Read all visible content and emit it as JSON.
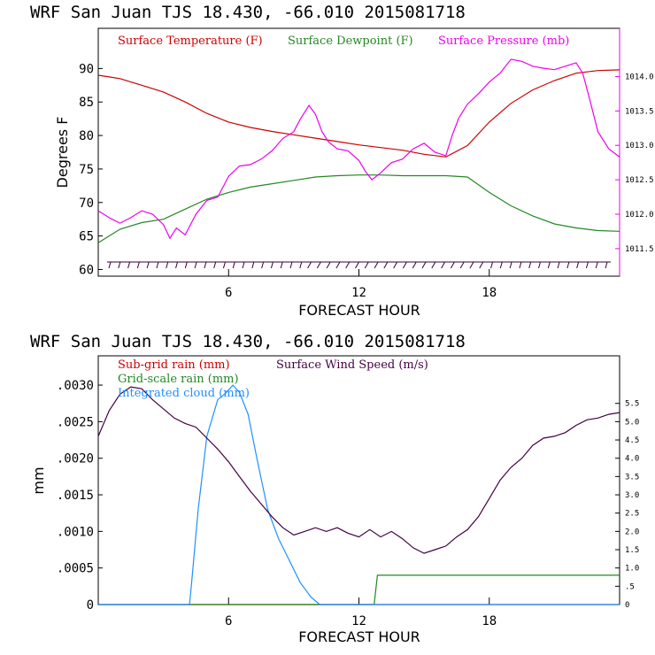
{
  "chart_data": [
    {
      "type": "line",
      "title": "WRF   San Juan TJS  18.430, -66.010  2015081718",
      "xlabel": "FORECAST HOUR",
      "ylabel": "Degrees F",
      "xlim": [
        0,
        24
      ],
      "ylim": [
        59,
        96
      ],
      "y2lim": [
        1011.1,
        1014.7
      ],
      "x_ticks": [
        6,
        12,
        18
      ],
      "y_ticks": [
        60,
        65,
        70,
        75,
        80,
        85,
        90
      ],
      "y2_ticks": [
        "1011.5",
        "1012.0",
        "1012.5",
        "1013.0",
        "1013.5",
        "1014.0"
      ],
      "y2_tick_values": [
        1011.5,
        1012.0,
        1012.5,
        1013.0,
        1013.5,
        1014.0
      ],
      "series": [
        {
          "name": "Surface Temperature (F)",
          "color": "#cc0000",
          "axis": "left",
          "x": [
            0,
            1,
            2,
            3,
            4,
            5,
            6,
            7,
            8,
            9,
            10,
            11,
            12,
            13,
            14,
            15,
            16,
            17,
            18,
            19,
            20,
            21,
            22,
            23,
            24
          ],
          "y": [
            89,
            88.5,
            87.5,
            86.5,
            85,
            83.3,
            82,
            81.2,
            80.6,
            80.1,
            79.6,
            79.1,
            78.6,
            78.2,
            77.8,
            77.2,
            76.8,
            78.5,
            82,
            84.8,
            86.8,
            88.2,
            89.3,
            89.7,
            89.8
          ]
        },
        {
          "name": "Surface Dewpoint (F)",
          "color": "#228822",
          "axis": "left",
          "x": [
            0,
            1,
            2,
            3,
            4,
            5,
            6,
            7,
            8,
            9,
            10,
            11,
            12,
            13,
            14,
            15,
            16,
            17,
            18,
            19,
            20,
            21,
            22,
            23,
            24
          ],
          "y": [
            64,
            66,
            67,
            67.5,
            69,
            70.5,
            71.5,
            72.3,
            72.8,
            73.3,
            73.8,
            74,
            74.1,
            74.1,
            74,
            74,
            74,
            73.8,
            71.5,
            69.5,
            68,
            66.8,
            66.2,
            65.8,
            65.7
          ]
        },
        {
          "name": "Surface Pressure (mb)",
          "color": "#ee00ee",
          "axis": "right",
          "x": [
            0,
            0.5,
            1,
            1.5,
            2,
            2.5,
            3,
            3.3,
            3.6,
            4,
            4.5,
            5,
            5.5,
            6,
            6.5,
            7,
            7.5,
            8,
            8.5,
            9,
            9.3,
            9.7,
            10,
            10.3,
            10.6,
            11,
            11.5,
            12,
            12.3,
            12.6,
            13,
            13.5,
            14,
            14.5,
            15,
            15.5,
            16,
            16.3,
            16.6,
            17,
            17.5,
            18,
            18.5,
            19,
            19.5,
            20,
            20.5,
            21,
            21.5,
            22,
            22.3,
            22.6,
            23,
            23.5,
            24
          ],
          "y": [
            1012.05,
            1011.95,
            1011.87,
            1011.95,
            1012.05,
            1012.0,
            1011.85,
            1011.65,
            1011.8,
            1011.7,
            1012.0,
            1012.2,
            1012.25,
            1012.55,
            1012.7,
            1012.72,
            1012.8,
            1012.92,
            1013.1,
            1013.2,
            1013.38,
            1013.58,
            1013.45,
            1013.2,
            1013.05,
            1012.95,
            1012.92,
            1012.78,
            1012.62,
            1012.5,
            1012.6,
            1012.75,
            1012.8,
            1012.95,
            1013.03,
            1012.9,
            1012.85,
            1013.15,
            1013.4,
            1013.6,
            1013.75,
            1013.92,
            1014.05,
            1014.25,
            1014.22,
            1014.15,
            1014.12,
            1014.1,
            1014.15,
            1014.2,
            1014.05,
            1013.7,
            1013.2,
            1012.95,
            1012.83
          ]
        }
      ]
    },
    {
      "type": "line",
      "title": "WRF   San Juan TJS  18.430, -66.010  2015081718",
      "xlabel": "FORECAST HOUR",
      "ylabel": "mm",
      "xlim": [
        0,
        24
      ],
      "ylim": [
        0,
        0.0034
      ],
      "y2lim": [
        0,
        6.8
      ],
      "x_ticks": [
        6,
        12,
        18
      ],
      "y_ticks": [
        "0",
        ".0005",
        ".0010",
        ".0015",
        ".0020",
        ".0025",
        ".0030"
      ],
      "y_tick_values": [
        0,
        0.0005,
        0.001,
        0.0015,
        0.002,
        0.0025,
        0.003
      ],
      "y2_ticks": [
        "0",
        ".5",
        "1.0",
        "1.5",
        "2.0",
        "2.5",
        "3.0",
        "3.5",
        "4.0",
        "4.5",
        "5.0",
        "5.5"
      ],
      "y2_tick_values": [
        0,
        0.5,
        1.0,
        1.5,
        2.0,
        2.5,
        3.0,
        3.5,
        4.0,
        4.5,
        5.0,
        5.5
      ],
      "series": [
        {
          "name": "Sub-grid rain (mm)",
          "color": "#cc0000",
          "axis": "left",
          "x": [
            0,
            24
          ],
          "y": [
            0,
            0
          ]
        },
        {
          "name": "Grid-scale rain (mm)",
          "color": "#228822",
          "axis": "left",
          "x": [
            0,
            12.7,
            12.85,
            13,
            24
          ],
          "y": [
            0,
            0,
            0.0004,
            0.0004,
            0.0004
          ]
        },
        {
          "name": "Integrated cloud (mm)",
          "color": "#1e90ff",
          "axis": "left",
          "x": [
            0,
            4.2,
            4.3,
            4.6,
            5,
            5.5,
            5.9,
            6.2,
            6.5,
            6.9,
            7.3,
            7.8,
            8.3,
            8.8,
            9.3,
            9.8,
            10.2,
            12.5,
            24
          ],
          "y": [
            0,
            0,
            0.0003,
            0.0013,
            0.0023,
            0.0028,
            0.0029,
            0.003,
            0.0029,
            0.0026,
            0.002,
            0.0013,
            0.0009,
            0.0006,
            0.0003,
            0.0001,
            0,
            0,
            0
          ]
        },
        {
          "name": "Surface Wind Speed (m/s)",
          "color": "#440044",
          "axis": "right",
          "x": [
            0,
            0.5,
            1,
            1.5,
            2,
            2.5,
            3,
            3.5,
            4,
            4.5,
            5,
            5.5,
            6,
            6.5,
            7,
            7.5,
            8,
            8.5,
            9,
            9.5,
            10,
            10.5,
            11,
            11.5,
            12,
            12.5,
            13,
            13.5,
            14,
            14.5,
            15,
            15.5,
            16,
            16.5,
            17,
            17.5,
            18,
            18.5,
            19,
            19.5,
            20,
            20.5,
            21,
            21.5,
            22,
            22.5,
            23,
            23.5,
            24
          ],
          "y": [
            4.6,
            5.3,
            5.75,
            5.95,
            5.9,
            5.6,
            5.35,
            5.1,
            4.95,
            4.85,
            4.55,
            4.25,
            3.9,
            3.5,
            3.1,
            2.75,
            2.4,
            2.1,
            1.9,
            2.0,
            2.1,
            2.0,
            2.1,
            1.95,
            1.85,
            2.05,
            1.85,
            2.0,
            1.8,
            1.55,
            1.4,
            1.5,
            1.6,
            1.85,
            2.05,
            2.4,
            2.9,
            3.4,
            3.75,
            4.0,
            4.35,
            4.55,
            4.6,
            4.7,
            4.9,
            5.05,
            5.1,
            5.2,
            5.25
          ]
        }
      ]
    }
  ]
}
